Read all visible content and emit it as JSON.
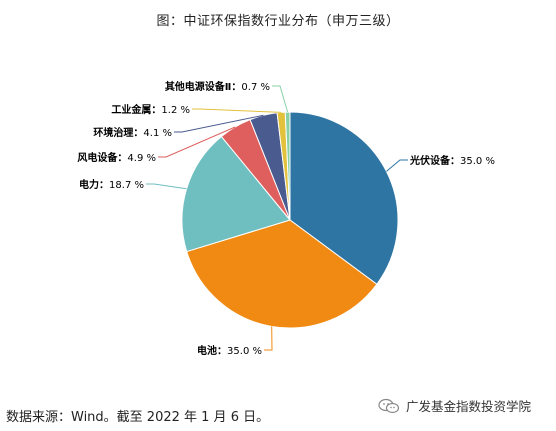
{
  "title": "图：中证环保指数行业分布（申万三级）",
  "source": "数据来源：Wind。截至 2022 年 1 月 6 日。",
  "watermark": "广发基金指数投资学院",
  "chart_data": {
    "type": "pie",
    "slices": [
      {
        "name": "光伏设备",
        "value": 35.0,
        "label": "35.0 %",
        "color": "#2e75a3"
      },
      {
        "name": "电池",
        "value": 35.0,
        "label": "35.0 %",
        "color": "#f08a12"
      },
      {
        "name": "电力",
        "value": 18.7,
        "label": "18.7 %",
        "color": "#6fbfc1"
      },
      {
        "name": "风电设备",
        "value": 4.9,
        "label": "4.9 %",
        "color": "#de5f5d"
      },
      {
        "name": "环境治理",
        "value": 4.1,
        "label": "4.1 %",
        "color": "#4a5b8f"
      },
      {
        "name": "工业金属",
        "value": 1.2,
        "label": "1.2 %",
        "color": "#e2c13c"
      },
      {
        "name": "其他电源设备Ⅱ",
        "value": 0.7,
        "label": "0.7 %",
        "color": "#8ad0a6"
      }
    ]
  }
}
